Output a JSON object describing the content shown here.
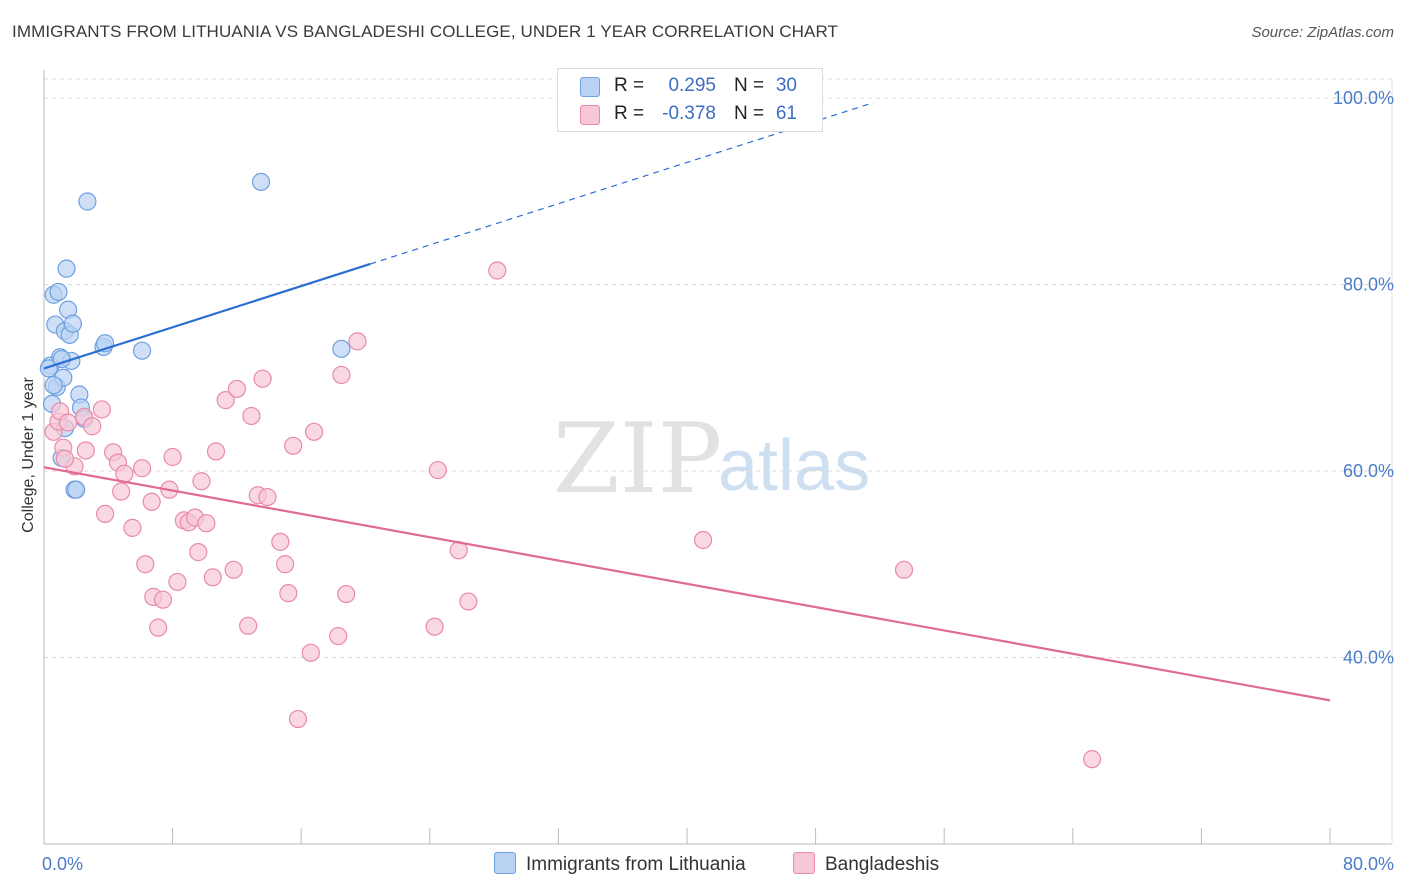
{
  "chart_data": {
    "type": "scatter",
    "title": "IMMIGRANTS FROM LITHUANIA VS BANGLADESHI COLLEGE, UNDER 1 YEAR CORRELATION CHART",
    "source": "Source: ZipAtlas.com",
    "ylabel": "College, Under 1 year",
    "xlim": [
      0,
      80
    ],
    "ylim": [
      20,
      103
    ],
    "x_tick_labels": [
      "0.0%",
      "80.0%"
    ],
    "y_ticks": [
      40,
      60,
      80,
      100
    ],
    "y_tick_labels": [
      "40.0%",
      "60.0%",
      "80.0%",
      "100.0%"
    ],
    "grid": true,
    "watermark": {
      "zip": "ZIP",
      "atlas": "atlas"
    },
    "legend": {
      "rows": [
        {
          "r_label": "R =",
          "r_value": "0.295",
          "n_label": "N =",
          "n_value": "30"
        },
        {
          "r_label": "R =",
          "r_value": "-0.378",
          "n_label": "N =",
          "n_value": "61"
        }
      ]
    },
    "series": [
      {
        "name": "Immigrants from Lithuania",
        "color": "#6fa0e0",
        "fill": "#b9d2f3",
        "trend_color": "#2a6fcf",
        "trend": {
          "x0": 0.0,
          "y0": 71.0,
          "x1": 20.3,
          "y1": 82.2,
          "dash_to_x": 51.6,
          "dash_to_y": 99.5
        },
        "points": [
          [
            0.4,
            71.3
          ],
          [
            0.5,
            67.2
          ],
          [
            0.6,
            78.9
          ],
          [
            0.7,
            75.7
          ],
          [
            0.8,
            69.0
          ],
          [
            0.9,
            79.2
          ],
          [
            1.0,
            72.2
          ],
          [
            1.1,
            61.4
          ],
          [
            1.2,
            70.0
          ],
          [
            1.3,
            75.0
          ],
          [
            1.4,
            81.7
          ],
          [
            1.5,
            77.3
          ],
          [
            1.6,
            74.6
          ],
          [
            1.7,
            71.8
          ],
          [
            1.8,
            75.8
          ],
          [
            1.9,
            58.0
          ],
          [
            2.0,
            58.0
          ],
          [
            2.2,
            68.2
          ],
          [
            2.3,
            66.8
          ],
          [
            2.5,
            65.6
          ],
          [
            2.7,
            88.9
          ],
          [
            3.7,
            73.3
          ],
          [
            3.8,
            73.7
          ],
          [
            6.1,
            72.9
          ],
          [
            13.5,
            91.0
          ],
          [
            18.5,
            73.1
          ],
          [
            0.3,
            71.0
          ],
          [
            1.3,
            64.6
          ],
          [
            0.6,
            69.2
          ],
          [
            1.1,
            72.0
          ]
        ]
      },
      {
        "name": "Bangladeshis",
        "color": "#e98aa8",
        "fill": "#f7c7d6",
        "trend_color": "#e06b93",
        "trend": {
          "x0": 0.0,
          "y0": 60.4,
          "x1": 80.0,
          "y1": 35.4
        },
        "points": [
          [
            0.6,
            64.2
          ],
          [
            0.9,
            65.3
          ],
          [
            1.0,
            66.4
          ],
          [
            1.2,
            62.5
          ],
          [
            1.5,
            65.2
          ],
          [
            1.9,
            60.5
          ],
          [
            2.5,
            65.8
          ],
          [
            2.6,
            62.2
          ],
          [
            3.0,
            64.8
          ],
          [
            3.6,
            66.6
          ],
          [
            3.8,
            55.4
          ],
          [
            4.3,
            62.0
          ],
          [
            4.6,
            60.9
          ],
          [
            4.8,
            57.8
          ],
          [
            5.0,
            59.7
          ],
          [
            5.5,
            53.9
          ],
          [
            6.1,
            60.3
          ],
          [
            6.3,
            50.0
          ],
          [
            6.7,
            56.7
          ],
          [
            6.8,
            46.5
          ],
          [
            7.1,
            43.2
          ],
          [
            7.4,
            46.2
          ],
          [
            7.8,
            58.0
          ],
          [
            8.0,
            61.5
          ],
          [
            8.3,
            48.1
          ],
          [
            8.7,
            54.7
          ],
          [
            9.0,
            54.5
          ],
          [
            9.4,
            55.0
          ],
          [
            9.6,
            51.3
          ],
          [
            9.8,
            58.9
          ],
          [
            10.1,
            54.4
          ],
          [
            10.5,
            48.6
          ],
          [
            10.7,
            62.1
          ],
          [
            11.3,
            67.6
          ],
          [
            11.8,
            49.4
          ],
          [
            12.0,
            68.8
          ],
          [
            12.7,
            43.4
          ],
          [
            12.9,
            65.9
          ],
          [
            13.3,
            57.4
          ],
          [
            13.6,
            69.9
          ],
          [
            13.9,
            57.2
          ],
          [
            14.7,
            52.4
          ],
          [
            15.0,
            50.0
          ],
          [
            15.2,
            46.9
          ],
          [
            15.5,
            62.7
          ],
          [
            15.8,
            33.4
          ],
          [
            16.6,
            40.5
          ],
          [
            16.8,
            64.2
          ],
          [
            18.3,
            42.3
          ],
          [
            18.5,
            70.3
          ],
          [
            18.8,
            46.8
          ],
          [
            19.5,
            73.9
          ],
          [
            24.3,
            43.3
          ],
          [
            24.5,
            60.1
          ],
          [
            25.8,
            51.5
          ],
          [
            26.4,
            46.0
          ],
          [
            28.2,
            81.5
          ],
          [
            41.0,
            52.6
          ],
          [
            53.5,
            49.4
          ],
          [
            65.2,
            29.1
          ],
          [
            1.3,
            61.3
          ]
        ]
      }
    ]
  }
}
